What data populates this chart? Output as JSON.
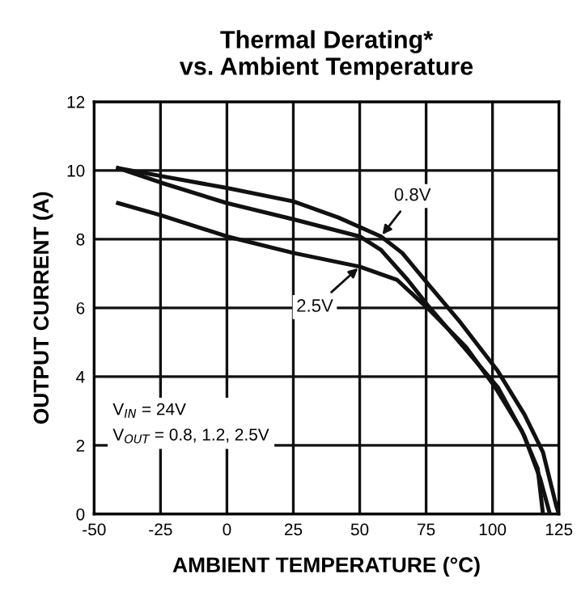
{
  "chart_data": {
    "type": "line",
    "title": "Thermal Derating*\nvs. Ambient Temperature",
    "xlabel": "AMBIENT TEMPERATURE (°C)",
    "ylabel": "OUTPUT CURRENT (A)",
    "xlim": [
      -50,
      125
    ],
    "xticks": [
      -50,
      -25,
      0,
      25,
      50,
      75,
      100,
      125
    ],
    "ylim": [
      0,
      12
    ],
    "yticks": [
      0,
      2,
      4,
      6,
      8,
      10,
      12
    ],
    "grid": true,
    "marker": "none",
    "line_style": "solid",
    "series": [
      {
        "name": "0.8V",
        "color": "#111111",
        "x": [
          -41,
          -25,
          0,
          25,
          42,
          58,
          66,
          76,
          88,
          102,
          112,
          119,
          124,
          125
        ],
        "values": [
          10.07,
          9.84,
          9.49,
          9.1,
          8.63,
          8.08,
          7.6,
          6.67,
          5.57,
          4.16,
          2.9,
          1.8,
          0.24,
          0
        ]
      },
      {
        "color": "#111111",
        "x": [
          -41,
          -25,
          0,
          25,
          50,
          58,
          68,
          76,
          90,
          102,
          112,
          118,
          121.6
        ],
        "values": [
          10.07,
          9.65,
          9.05,
          8.58,
          8.08,
          7.69,
          6.82,
          6.04,
          4.78,
          3.69,
          2.27,
          1.02,
          0
        ]
      },
      {
        "name": "2.5V",
        "color": "#111111",
        "x": [
          -41,
          -25,
          0,
          25,
          50,
          64,
          76,
          90,
          101,
          111,
          117,
          119
        ],
        "values": [
          9.05,
          8.7,
          8.08,
          7.6,
          7.2,
          6.82,
          5.96,
          4.86,
          3.69,
          2.43,
          1.33,
          0
        ]
      }
    ],
    "annotations": [
      "V$_{IN}$ = 24V\nV$_{OUT}$ = 0.8, 1.2, 2.5V"
    ]
  }
}
